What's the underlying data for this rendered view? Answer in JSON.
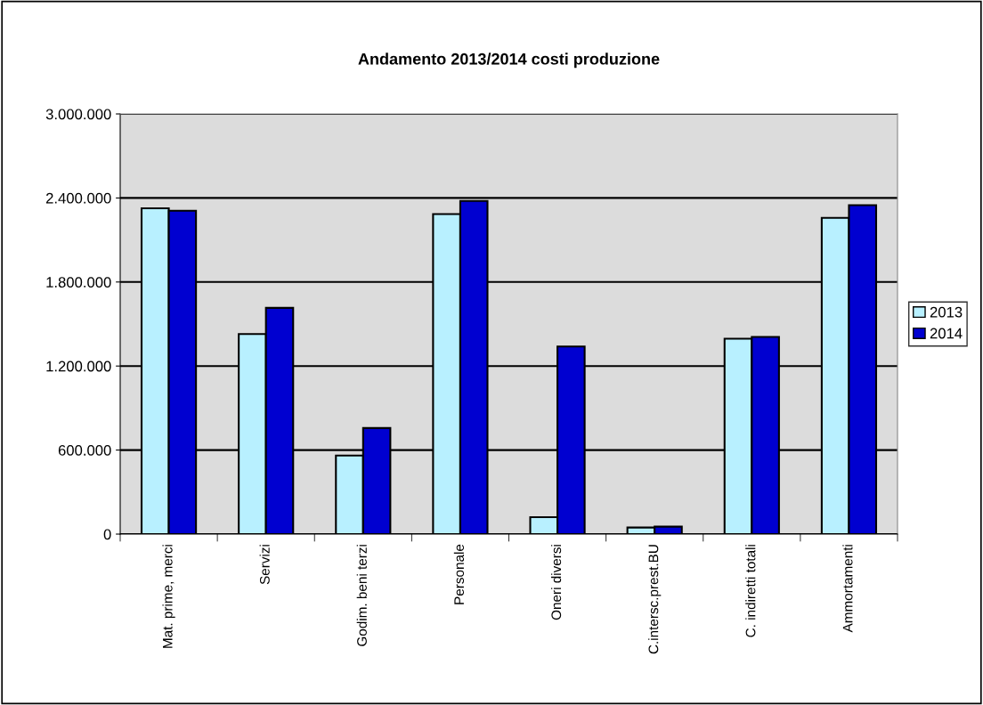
{
  "chart_data": {
    "type": "bar",
    "title": "Andamento 2013/2014 costi produzione",
    "categories": [
      "Mat. prime, merci",
      "Servizi",
      "Godim. beni terzi",
      "Personale",
      "Oneri diversi",
      "C.intersc.prest.BU",
      "C. indiretti totali",
      "Ammortamenti"
    ],
    "series": [
      {
        "name": "2013",
        "color": "#b8f0ff",
        "values": [
          2326000,
          1429000,
          561000,
          2285000,
          121000,
          47000,
          1395000,
          2258000
        ]
      },
      {
        "name": "2014",
        "color": "#0000d0",
        "values": [
          2309000,
          1615000,
          757000,
          2379000,
          1339000,
          53000,
          1408000,
          2349000
        ]
      }
    ],
    "ylim": [
      0,
      3000000
    ],
    "yticks": [
      {
        "value": 0,
        "label": "0"
      },
      {
        "value": 600000,
        "label": "600.000"
      },
      {
        "value": 1200000,
        "label": "1.200.000"
      },
      {
        "value": 1800000,
        "label": "1.800.000"
      },
      {
        "value": 2400000,
        "label": "2.400.000"
      },
      {
        "value": 3000000,
        "label": "3.000.000"
      }
    ],
    "grid": "y",
    "legend": "right"
  }
}
